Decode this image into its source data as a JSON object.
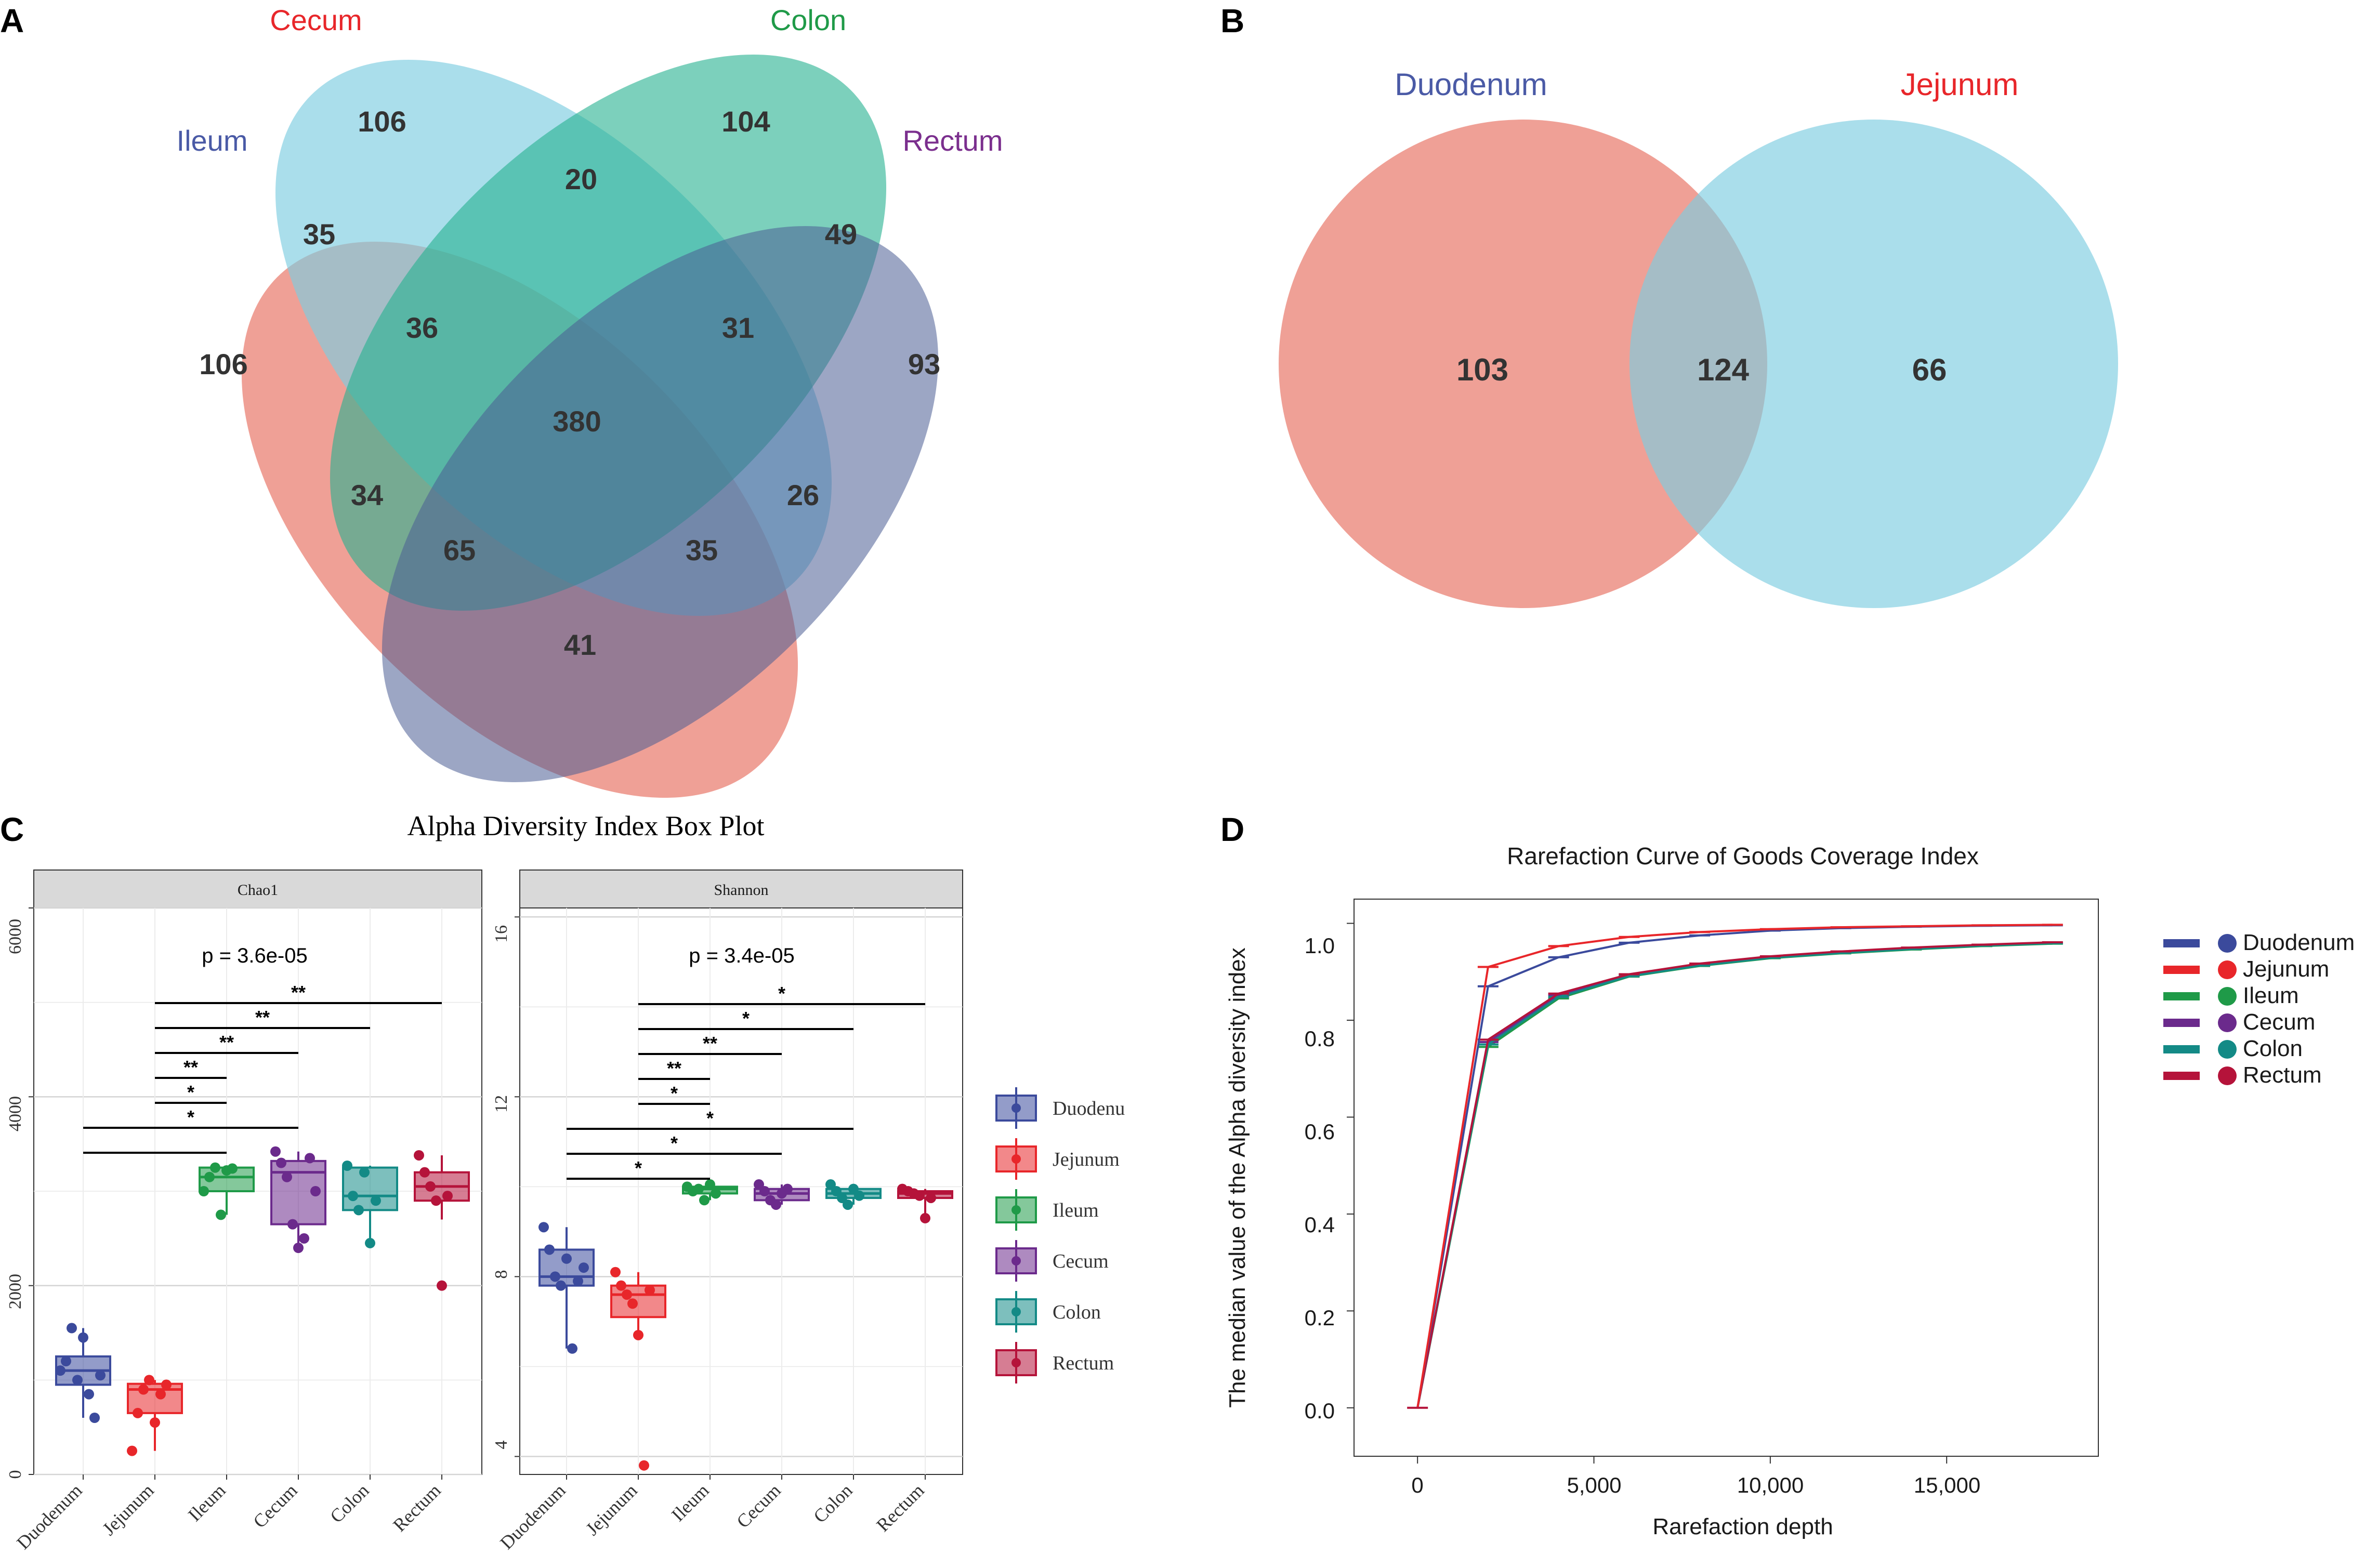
{
  "panels": {
    "A": "A",
    "B": "B",
    "C": "C",
    "D": "D"
  },
  "colors": {
    "duodenum": "#3b4a9c",
    "jejunum": "#e8262a",
    "ileum": "#1f9a48",
    "cecum": "#6b2a8c",
    "colon": "#138a86",
    "rectum": "#b5133a",
    "venn_red": "#e8786a",
    "venn_blue": "#7ccde0",
    "venn_green": "#25b08f",
    "venn_navy": "#4b5c94"
  },
  "chart_data": [
    {
      "type": "venn",
      "panel": "A",
      "sets": [
        {
          "name": "Ileum",
          "color": "#4a5aa6"
        },
        {
          "name": "Cecum",
          "color": "#e8262a"
        },
        {
          "name": "Colon",
          "color": "#1f9a48"
        },
        {
          "name": "Rectum",
          "color": "#7b2f8e"
        }
      ],
      "regions": [
        {
          "sets": [
            "Cecum"
          ],
          "value": 106
        },
        {
          "sets": [
            "Colon"
          ],
          "value": 104
        },
        {
          "sets": [
            "Cecum",
            "Colon"
          ],
          "value": 20
        },
        {
          "sets": [
            "Ileum",
            "Cecum"
          ],
          "value": 35
        },
        {
          "sets": [
            "Colon",
            "Rectum"
          ],
          "value": 49
        },
        {
          "sets": [
            "Ileum",
            "Cecum",
            "Colon"
          ],
          "value": 36
        },
        {
          "sets": [
            "Cecum",
            "Colon",
            "Rectum"
          ],
          "value": 31
        },
        {
          "sets": [
            "Ileum"
          ],
          "value": 106
        },
        {
          "sets": [
            "Rectum"
          ],
          "value": 93
        },
        {
          "sets": [
            "Ileum",
            "Cecum",
            "Colon",
            "Rectum"
          ],
          "value": 380
        },
        {
          "sets": [
            "Ileum",
            "Colon"
          ],
          "value": 34
        },
        {
          "sets": [
            "Cecum",
            "Rectum"
          ],
          "value": 26
        },
        {
          "sets": [
            "Ileum",
            "Colon",
            "Rectum"
          ],
          "value": 65
        },
        {
          "sets": [
            "Ileum",
            "Cecum",
            "Rectum"
          ],
          "value": 35
        },
        {
          "sets": [
            "Ileum",
            "Rectum"
          ],
          "value": 41
        }
      ]
    },
    {
      "type": "venn",
      "panel": "B",
      "sets": [
        {
          "name": "Duodenum",
          "color": "#4a5aa6"
        },
        {
          "name": "Jejunum",
          "color": "#e8262a"
        }
      ],
      "regions": [
        {
          "sets": [
            "Duodenum"
          ],
          "value": 103
        },
        {
          "sets": [
            "Duodenum",
            "Jejunum"
          ],
          "value": 124
        },
        {
          "sets": [
            "Jejunum"
          ],
          "value": 66
        }
      ]
    },
    {
      "type": "boxplot",
      "panel": "C",
      "title": "Alpha Diversity Index Box Plot",
      "categories": [
        "Duodenum",
        "Jejunum",
        "Ileum",
        "Cecum",
        "Colon",
        "Rectum"
      ],
      "legend": [
        "Duodenu",
        "Jejunum",
        "Ileum",
        "Cecum",
        "Colon",
        "Rectum"
      ],
      "facets": [
        {
          "name": "Chao1",
          "ylim": [
            0,
            6000
          ],
          "yticks": [
            0,
            2000,
            4000,
            6000
          ],
          "pvalue": "p = 3.6e-05",
          "boxes": [
            {
              "q1": 950,
              "median": 1100,
              "q3": 1250,
              "whisker_low": 600,
              "whisker_high": 1550
            },
            {
              "q1": 650,
              "median": 900,
              "q3": 960,
              "whisker_low": 250,
              "whisker_high": 1000
            },
            {
              "q1": 3000,
              "median": 3150,
              "q3": 3250,
              "whisker_low": 2750,
              "whisker_high": 3270
            },
            {
              "q1": 2650,
              "median": 3200,
              "q3": 3320,
              "whisker_low": 2400,
              "whisker_high": 3420
            },
            {
              "q1": 2800,
              "median": 2950,
              "q3": 3250,
              "whisker_low": 2450,
              "whisker_high": 3270
            },
            {
              "q1": 2900,
              "median": 3050,
              "q3": 3200,
              "whisker_low": 2700,
              "whisker_high": 3380
            }
          ],
          "points": [
            [
              1100,
              1200,
              1550,
              1000,
              1450,
              850,
              600,
              1050
            ],
            [
              250,
              650,
              900,
              1000,
              550,
              850,
              950
            ],
            [
              3000,
              3150,
              3250,
              2750,
              3220,
              3240
            ],
            [
              3420,
              3300,
              3150,
              2650,
              2400,
              2500,
              3350,
              3000
            ],
            [
              3270,
              2950,
              2800,
              3200,
              2450,
              2900
            ],
            [
              3380,
              3200,
              3050,
              2900,
              2000,
              2950
            ]
          ],
          "significance": [
            {
              "from": "Jejunum",
              "to": "Rectum",
              "label": "**"
            },
            {
              "from": "Jejunum",
              "to": "Colon",
              "label": "**"
            },
            {
              "from": "Jejunum",
              "to": "Cecum",
              "label": "**"
            },
            {
              "from": "Jejunum",
              "to": "Ileum",
              "label": "**"
            },
            {
              "from": "Jejunum",
              "to": "Ileum",
              "label": "*"
            },
            {
              "from": "Duodenum",
              "to": "Cecum",
              "label": "*"
            },
            {
              "from": "Duodenum",
              "to": "Ileum",
              "label": ""
            }
          ]
        },
        {
          "name": "Shannon",
          "ylim": [
            3.6,
            16.2
          ],
          "yticks": [
            4,
            8,
            12,
            16
          ],
          "pvalue": "p = 3.4e-05",
          "boxes": [
            {
              "q1": 7.8,
              "median": 8.0,
              "q3": 8.6,
              "whisker_low": 6.4,
              "whisker_high": 9.1
            },
            {
              "q1": 7.1,
              "median": 7.6,
              "q3": 7.8,
              "whisker_low": 6.7,
              "whisker_high": 8.1
            },
            {
              "q1": 9.85,
              "median": 9.95,
              "q3": 10.0,
              "whisker_low": 9.7,
              "whisker_high": 10.05
            },
            {
              "q1": 9.7,
              "median": 9.85,
              "q3": 9.95,
              "whisker_low": 9.6,
              "whisker_high": 10.05
            },
            {
              "q1": 9.75,
              "median": 9.85,
              "q3": 9.95,
              "whisker_low": 9.6,
              "whisker_high": 10.05
            },
            {
              "q1": 9.75,
              "median": 9.85,
              "q3": 9.9,
              "whisker_low": 9.3,
              "whisker_high": 9.95
            }
          ],
          "points": [
            [
              9.1,
              8.6,
              8.0,
              7.8,
              8.4,
              6.4,
              7.9,
              8.2
            ],
            [
              8.1,
              7.8,
              7.6,
              7.4,
              6.7,
              3.8,
              7.7
            ],
            [
              10.0,
              9.9,
              9.95,
              9.7,
              10.05,
              9.85
            ],
            [
              10.05,
              9.9,
              9.7,
              9.6,
              9.85,
              9.95
            ],
            [
              10.05,
              9.9,
              9.75,
              9.6,
              9.95,
              9.8
            ],
            [
              9.95,
              9.9,
              9.85,
              9.8,
              9.3,
              9.75
            ]
          ],
          "significance": [
            {
              "from": "Jejunum",
              "to": "Rectum",
              "label": "*"
            },
            {
              "from": "Jejunum",
              "to": "Colon",
              "label": "*"
            },
            {
              "from": "Jejunum",
              "to": "Cecum",
              "label": "**"
            },
            {
              "from": "Jejunum",
              "to": "Ileum",
              "label": "**"
            },
            {
              "from": "Jejunum",
              "to": "Ileum",
              "label": "*"
            },
            {
              "from": "Duodenum",
              "to": "Colon",
              "label": "*"
            },
            {
              "from": "Duodenum",
              "to": "Cecum",
              "label": "*"
            },
            {
              "from": "Duodenum",
              "to": "Ileum",
              "label": "*"
            }
          ]
        }
      ]
    },
    {
      "type": "line",
      "panel": "D",
      "title": "Rarefaction Curve of Goods Coverage Index",
      "xlabel": "Rarefaction depth",
      "ylabel": "The median value of the Alpha diversity index",
      "xlim": [
        -1800,
        19300
      ],
      "ylim": [
        -0.1,
        1.05
      ],
      "xticks": [
        0,
        5000,
        10000,
        15000
      ],
      "xtick_labels": [
        "0",
        "5,000",
        "10,000",
        "15,000"
      ],
      "yticks": [
        0.0,
        0.2,
        0.4,
        0.6,
        0.8,
        1.0
      ],
      "ytick_labels": [
        "0.0",
        "0.2",
        "0.4",
        "0.6",
        "0.8",
        "1.0"
      ],
      "x": [
        0,
        2000,
        4000,
        6000,
        8000,
        10000,
        12000,
        14000,
        16000,
        18000
      ],
      "series": [
        {
          "name": "Duodenum",
          "values": [
            0,
            0.87,
            0.93,
            0.96,
            0.975,
            0.985,
            0.99,
            0.993,
            0.995,
            0.996
          ]
        },
        {
          "name": "Jejunum",
          "values": [
            0,
            0.91,
            0.953,
            0.972,
            0.982,
            0.988,
            0.992,
            0.994,
            0.996,
            0.997
          ]
        },
        {
          "name": "Ileum",
          "values": [
            0,
            0.745,
            0.845,
            0.89,
            0.912,
            0.928,
            0.938,
            0.946,
            0.953,
            0.958
          ]
        },
        {
          "name": "Cecum",
          "values": [
            0,
            0.755,
            0.852,
            0.893,
            0.915,
            0.93,
            0.94,
            0.948,
            0.955,
            0.96
          ]
        },
        {
          "name": "Colon",
          "values": [
            0,
            0.75,
            0.848,
            0.891,
            0.913,
            0.929,
            0.939,
            0.947,
            0.954,
            0.959
          ]
        },
        {
          "name": "Rectum",
          "values": [
            0,
            0.76,
            0.855,
            0.895,
            0.917,
            0.932,
            0.942,
            0.95,
            0.956,
            0.961
          ]
        }
      ]
    }
  ]
}
